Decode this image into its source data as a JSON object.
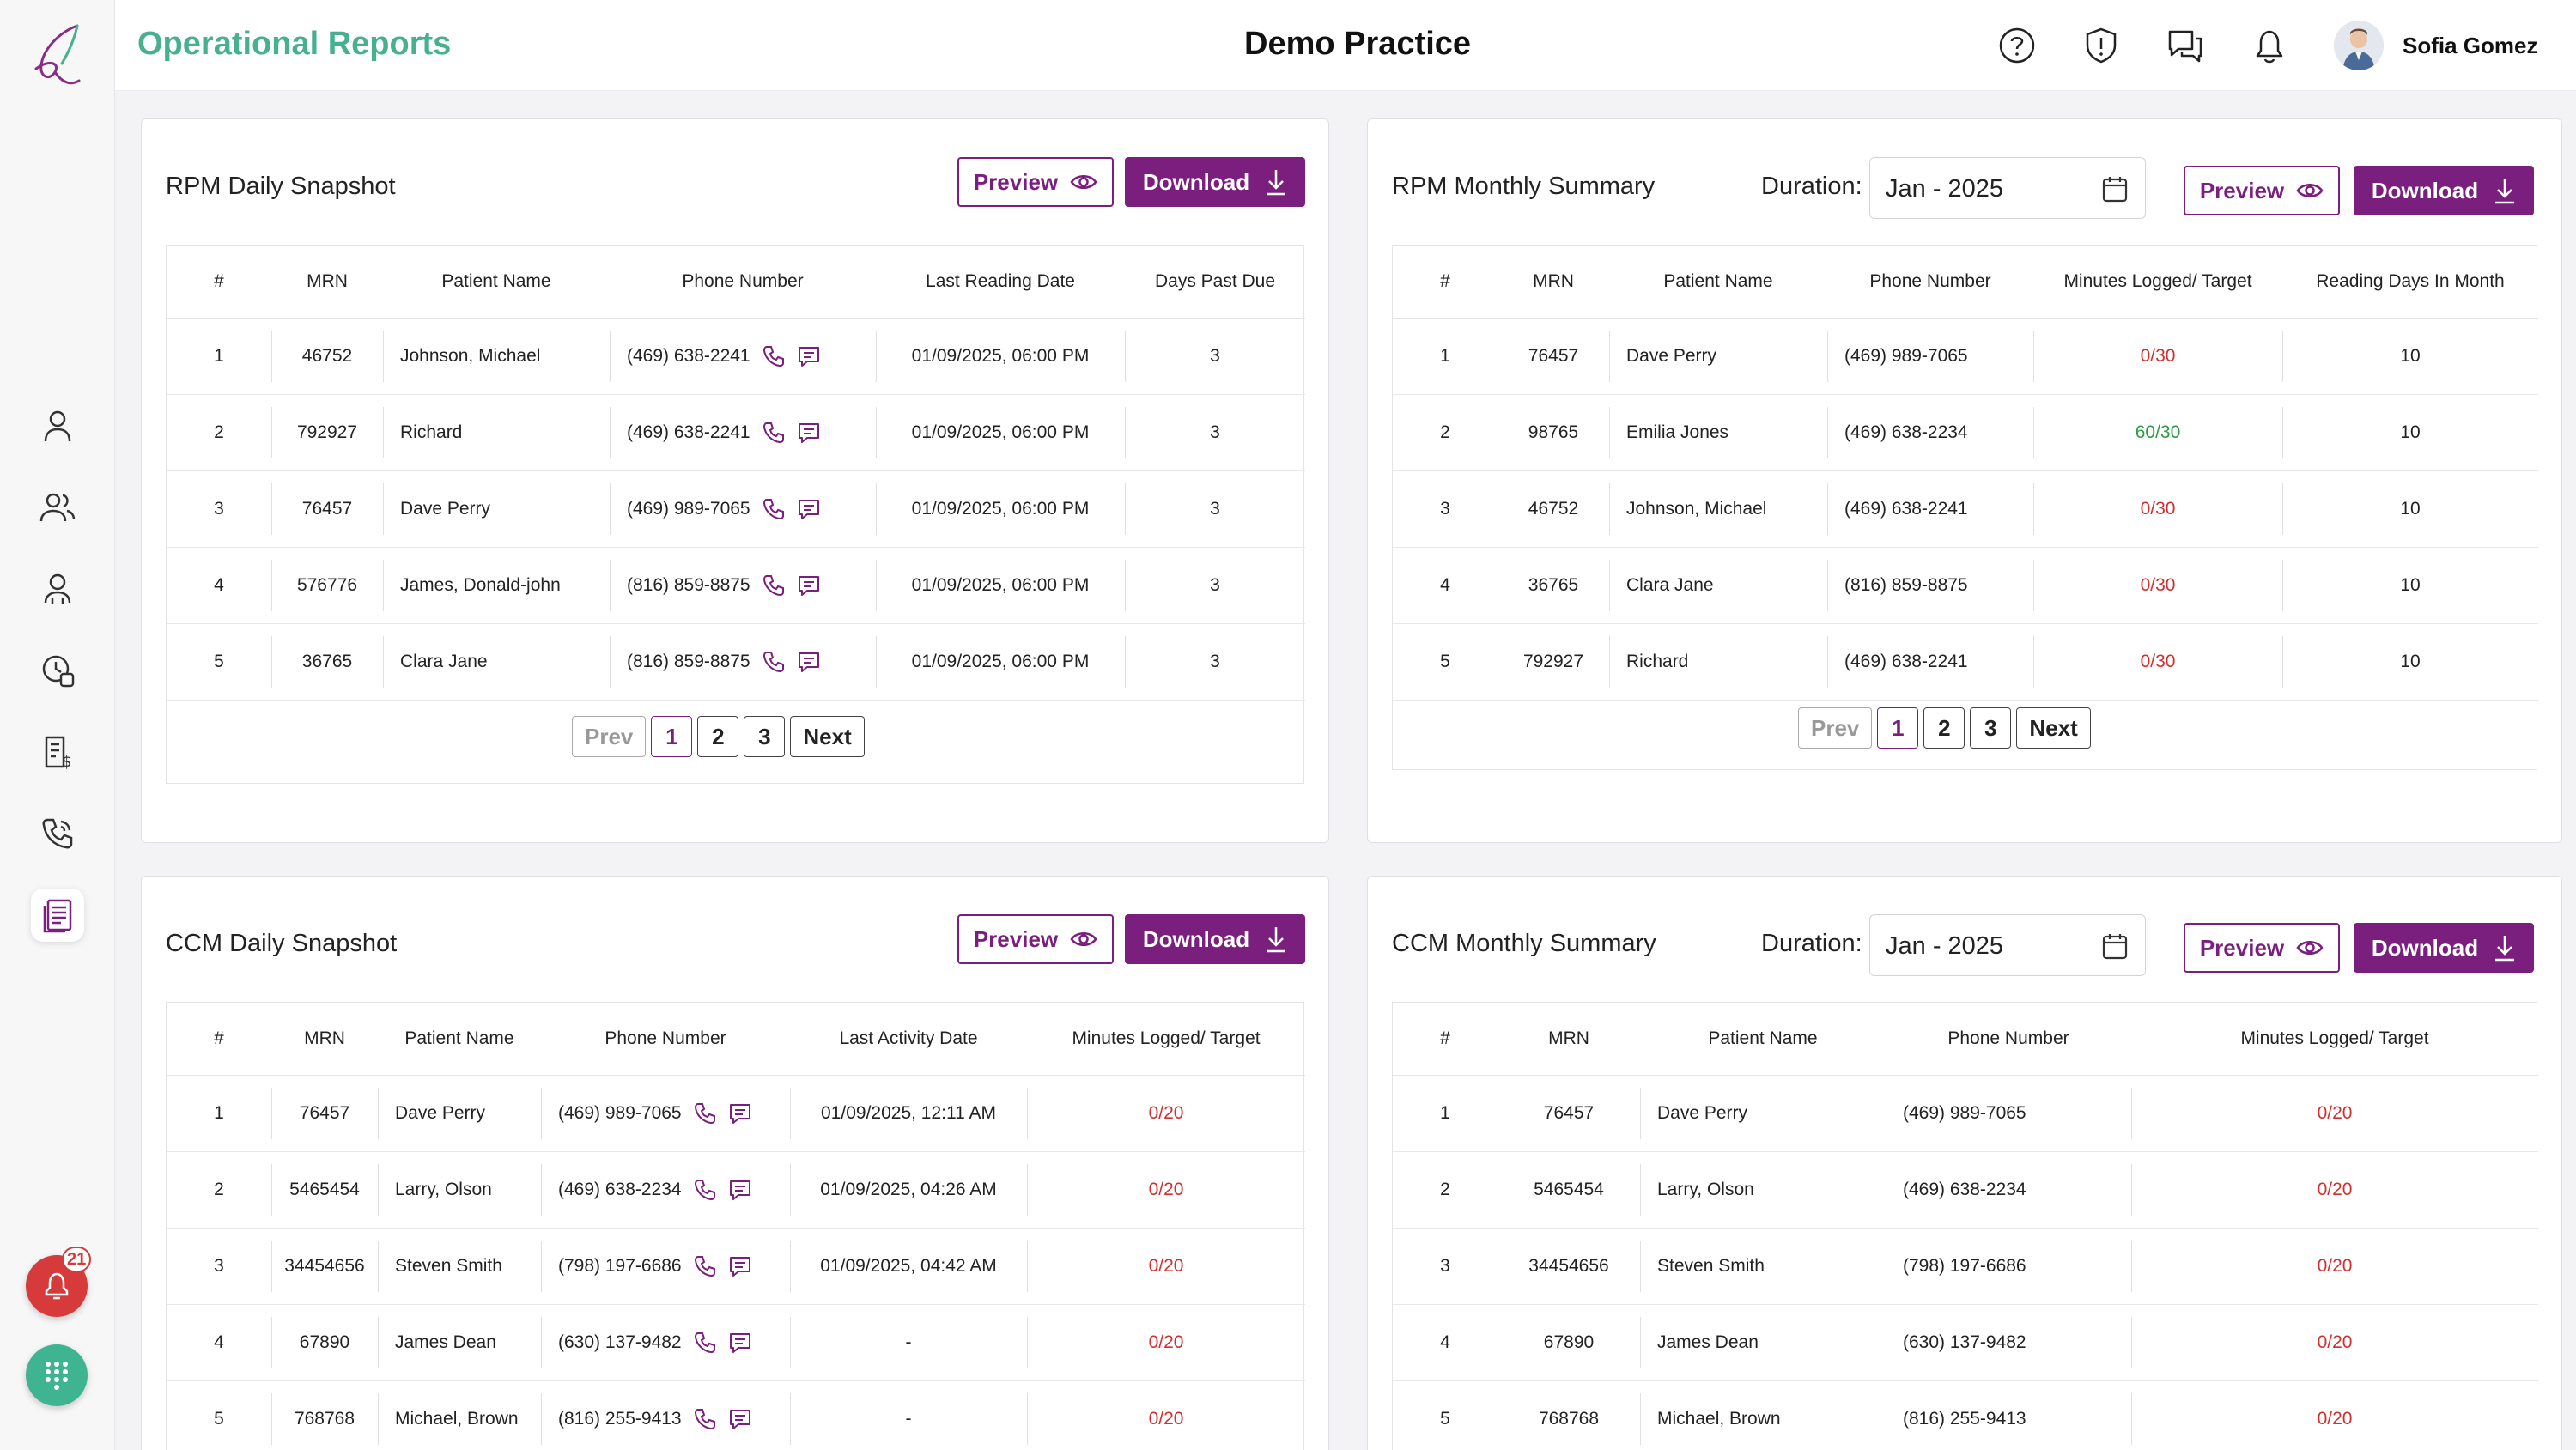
{
  "header": {
    "page_title": "Operational Reports",
    "practice_name": "Demo Practice",
    "user_name": "Sofia Gomez"
  },
  "sidebar": {
    "alert_count": "21",
    "icons": [
      "user-icon",
      "users-icon",
      "user-group-icon",
      "clock-user-icon",
      "billing-icon",
      "phone-call-icon",
      "reports-icon"
    ]
  },
  "colors": {
    "brand": "#47b08f",
    "accent": "#7a1f7e",
    "danger": "#d03030",
    "success": "#2e9a45"
  },
  "pagination": {
    "prev": "Prev",
    "next": "Next",
    "pages": [
      "1",
      "2",
      "3"
    ]
  },
  "rpm_daily": {
    "title": "RPM Daily Snapshot",
    "preview_label": "Preview",
    "download_label": "Download",
    "columns": [
      "#",
      "MRN",
      "Patient Name",
      "Phone Number",
      "Last Reading Date",
      "Days Past Due"
    ],
    "rows": [
      {
        "n": "1",
        "mrn": "46752",
        "name": "Johnson, Michael",
        "phone": "(469) 638-2241",
        "date": "01/09/2025, 06:00 PM",
        "due": "3"
      },
      {
        "n": "2",
        "mrn": "792927",
        "name": "Richard",
        "phone": "(469) 638-2241",
        "date": "01/09/2025, 06:00 PM",
        "due": "3"
      },
      {
        "n": "3",
        "mrn": "76457",
        "name": "Dave Perry",
        "phone": "(469) 989-7065",
        "date": "01/09/2025, 06:00 PM",
        "due": "3"
      },
      {
        "n": "4",
        "mrn": "576776",
        "name": "James, Donald-john",
        "phone": "(816) 859-8875",
        "date": "01/09/2025, 06:00 PM",
        "due": "3"
      },
      {
        "n": "5",
        "mrn": "36765",
        "name": "Clara Jane",
        "phone": "(816) 859-8875",
        "date": "01/09/2025, 06:00 PM",
        "due": "3"
      }
    ]
  },
  "rpm_monthly": {
    "title": "RPM Monthly Summary",
    "duration_label": "Duration:",
    "duration_value": "Jan - 2025",
    "preview_label": "Preview",
    "download_label": "Download",
    "columns": [
      "#",
      "MRN",
      "Patient Name",
      "Phone Number",
      "Minutes Logged/ Target",
      "Reading Days In Month"
    ],
    "rows": [
      {
        "n": "1",
        "mrn": "76457",
        "name": "Dave Perry",
        "phone": "(469) 989-7065",
        "minutes": "0/30",
        "status": "red",
        "days": "10"
      },
      {
        "n": "2",
        "mrn": "98765",
        "name": "Emilia Jones",
        "phone": "(469) 638-2234",
        "minutes": "60/30",
        "status": "green",
        "days": "10"
      },
      {
        "n": "3",
        "mrn": "46752",
        "name": "Johnson, Michael",
        "phone": "(469) 638-2241",
        "minutes": "0/30",
        "status": "red",
        "days": "10"
      },
      {
        "n": "4",
        "mrn": "36765",
        "name": "Clara Jane",
        "phone": "(816) 859-8875",
        "minutes": "0/30",
        "status": "red",
        "days": "10"
      },
      {
        "n": "5",
        "mrn": "792927",
        "name": "Richard",
        "phone": "(469) 638-2241",
        "minutes": "0/30",
        "status": "red",
        "days": "10"
      }
    ]
  },
  "ccm_daily": {
    "title": "CCM Daily Snapshot",
    "preview_label": "Preview",
    "download_label": "Download",
    "columns": [
      "#",
      "MRN",
      "Patient Name",
      "Phone Number",
      "Last Activity Date",
      "Minutes Logged/ Target"
    ],
    "rows": [
      {
        "n": "1",
        "mrn": "76457",
        "name": "Dave Perry",
        "phone": "(469) 989-7065",
        "date": "01/09/2025, 12:11 AM",
        "minutes": "0/20"
      },
      {
        "n": "2",
        "mrn": "5465454",
        "name": "Larry, Olson",
        "phone": "(469) 638-2234",
        "date": "01/09/2025, 04:26 AM",
        "minutes": "0/20"
      },
      {
        "n": "3",
        "mrn": "34454656",
        "name": "Steven Smith",
        "phone": "(798) 197-6686",
        "date": "01/09/2025, 04:42 AM",
        "minutes": "0/20"
      },
      {
        "n": "4",
        "mrn": "67890",
        "name": "James Dean",
        "phone": "(630) 137-9482",
        "date": "-",
        "minutes": "0/20"
      },
      {
        "n": "5",
        "mrn": "768768",
        "name": "Michael, Brown",
        "phone": "(816) 255-9413",
        "date": "-",
        "minutes": "0/20"
      }
    ]
  },
  "ccm_monthly": {
    "title": "CCM Monthly Summary",
    "duration_label": "Duration:",
    "duration_value": "Jan - 2025",
    "preview_label": "Preview",
    "download_label": "Download",
    "columns": [
      "#",
      "MRN",
      "Patient Name",
      "Phone Number",
      "Minutes Logged/ Target"
    ],
    "rows": [
      {
        "n": "1",
        "mrn": "76457",
        "name": "Dave Perry",
        "phone": "(469) 989-7065",
        "minutes": "0/20"
      },
      {
        "n": "2",
        "mrn": "5465454",
        "name": "Larry, Olson",
        "phone": "(469) 638-2234",
        "minutes": "0/20"
      },
      {
        "n": "3",
        "mrn": "34454656",
        "name": "Steven Smith",
        "phone": "(798) 197-6686",
        "minutes": "0/20"
      },
      {
        "n": "4",
        "mrn": "67890",
        "name": "James Dean",
        "phone": "(630) 137-9482",
        "minutes": "0/20"
      },
      {
        "n": "5",
        "mrn": "768768",
        "name": "Michael, Brown",
        "phone": "(816) 255-9413",
        "minutes": "0/20"
      }
    ]
  }
}
